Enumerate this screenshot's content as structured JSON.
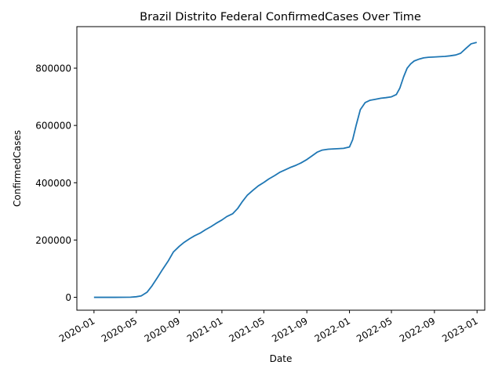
{
  "chart_data": {
    "type": "line",
    "title": "Brazil Distrito Federal ConfirmedCases Over Time",
    "xlabel": "Date",
    "ylabel": "ConfirmedCases",
    "x_axis_type": "date",
    "xlim": [
      "2019-11-13",
      "2023-01-23"
    ],
    "ylim": [
      -45000,
      945000
    ],
    "x_ticks": [
      "2020-01",
      "2020-05",
      "2020-09",
      "2021-01",
      "2021-05",
      "2021-09",
      "2022-01",
      "2022-05",
      "2022-09",
      "2023-01"
    ],
    "x_tick_dates": [
      "2020-01-01",
      "2020-05-01",
      "2020-09-01",
      "2021-01-01",
      "2021-05-01",
      "2021-09-01",
      "2022-01-01",
      "2022-05-01",
      "2022-09-01",
      "2023-01-01"
    ],
    "y_ticks": [
      0,
      200000,
      400000,
      600000,
      800000
    ],
    "y_tick_labels": [
      "0",
      "200000",
      "400000",
      "600000",
      "800000"
    ],
    "x_tick_rotation": 30,
    "grid": false,
    "legend": "none",
    "series": [
      {
        "color": "#1f77b4",
        "points": [
          [
            "2020-01-01",
            0
          ],
          [
            "2020-03-01",
            0
          ],
          [
            "2020-04-15",
            500
          ],
          [
            "2020-05-01",
            2000
          ],
          [
            "2020-05-15",
            5000
          ],
          [
            "2020-06-01",
            18000
          ],
          [
            "2020-06-15",
            40000
          ],
          [
            "2020-07-01",
            70000
          ],
          [
            "2020-07-15",
            97000
          ],
          [
            "2020-08-01",
            128000
          ],
          [
            "2020-08-15",
            158000
          ],
          [
            "2020-09-01",
            178000
          ],
          [
            "2020-09-15",
            192000
          ],
          [
            "2020-10-01",
            205000
          ],
          [
            "2020-10-15",
            215000
          ],
          [
            "2020-11-01",
            225000
          ],
          [
            "2020-11-15",
            236000
          ],
          [
            "2020-12-01",
            247000
          ],
          [
            "2020-12-15",
            258000
          ],
          [
            "2021-01-01",
            270000
          ],
          [
            "2021-01-15",
            282000
          ],
          [
            "2021-02-01",
            292000
          ],
          [
            "2021-02-15",
            310000
          ],
          [
            "2021-03-01",
            335000
          ],
          [
            "2021-03-15",
            357000
          ],
          [
            "2021-04-01",
            375000
          ],
          [
            "2021-04-15",
            389000
          ],
          [
            "2021-05-01",
            401000
          ],
          [
            "2021-05-15",
            413000
          ],
          [
            "2021-06-01",
            425000
          ],
          [
            "2021-06-15",
            436000
          ],
          [
            "2021-07-01",
            445000
          ],
          [
            "2021-07-15",
            453000
          ],
          [
            "2021-08-01",
            461000
          ],
          [
            "2021-08-15",
            469000
          ],
          [
            "2021-09-01",
            481000
          ],
          [
            "2021-09-15",
            493000
          ],
          [
            "2021-10-01",
            507000
          ],
          [
            "2021-10-15",
            514000
          ],
          [
            "2021-11-01",
            517000
          ],
          [
            "2021-11-15",
            518000
          ],
          [
            "2021-12-01",
            519000
          ],
          [
            "2021-12-15",
            520000
          ],
          [
            "2022-01-01",
            525000
          ],
          [
            "2022-01-10",
            550000
          ],
          [
            "2022-01-20",
            600000
          ],
          [
            "2022-02-01",
            655000
          ],
          [
            "2022-02-15",
            680000
          ],
          [
            "2022-03-01",
            688000
          ],
          [
            "2022-03-15",
            691000
          ],
          [
            "2022-04-01",
            695000
          ],
          [
            "2022-04-15",
            697000
          ],
          [
            "2022-05-01",
            700000
          ],
          [
            "2022-05-15",
            708000
          ],
          [
            "2022-05-25",
            730000
          ],
          [
            "2022-06-05",
            770000
          ],
          [
            "2022-06-15",
            800000
          ],
          [
            "2022-06-25",
            815000
          ],
          [
            "2022-07-05",
            825000
          ],
          [
            "2022-07-20",
            832000
          ],
          [
            "2022-08-01",
            836000
          ],
          [
            "2022-08-15",
            838000
          ],
          [
            "2022-09-01",
            839000
          ],
          [
            "2022-09-15",
            840000
          ],
          [
            "2022-10-01",
            841000
          ],
          [
            "2022-10-15",
            843000
          ],
          [
            "2022-11-01",
            846000
          ],
          [
            "2022-11-15",
            852000
          ],
          [
            "2022-12-01",
            870000
          ],
          [
            "2022-12-15",
            885000
          ],
          [
            "2022-12-31",
            890000
          ]
        ]
      }
    ]
  }
}
